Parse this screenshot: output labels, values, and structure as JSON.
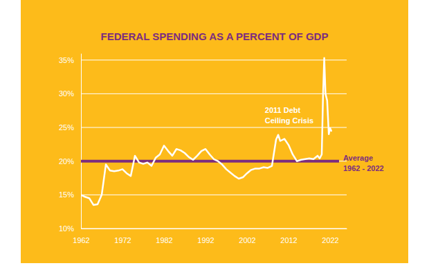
{
  "chart_data": {
    "type": "line",
    "title": "FEDERAL SPENDING AS A PERCENT OF GDP",
    "x": [
      1962,
      1963,
      1964,
      1965,
      1966,
      1967,
      1968,
      1969,
      1970,
      1971,
      1972,
      1973,
      1974,
      1975,
      1976,
      1977,
      1978,
      1979,
      1980,
      1981,
      1982,
      1983,
      1984,
      1985,
      1986,
      1987,
      1988,
      1989,
      1990,
      1991,
      1992,
      1993,
      1994,
      1995,
      1996,
      1997,
      1998,
      1999,
      2000,
      2001,
      2002,
      2003,
      2004,
      2005,
      2006,
      2007,
      2008,
      2009,
      2009.5,
      2010,
      2011,
      2012,
      2013,
      2014,
      2015,
      2016,
      2017,
      2018,
      2019,
      2019.5,
      2020,
      2020.3,
      2020.6,
      2020.9,
      2021.3,
      2021.7,
      2022,
      2022.3
    ],
    "values": [
      15.0,
      14.7,
      14.5,
      13.5,
      13.6,
      15.0,
      19.5,
      18.6,
      18.5,
      18.6,
      18.8,
      18.2,
      17.8,
      20.8,
      19.8,
      19.6,
      19.8,
      19.3,
      20.5,
      21.0,
      22.3,
      21.5,
      20.8,
      21.8,
      21.6,
      21.2,
      20.6,
      20.2,
      20.8,
      21.5,
      21.8,
      21.0,
      20.3,
      20.0,
      19.5,
      18.8,
      18.3,
      17.8,
      17.4,
      17.6,
      18.2,
      18.7,
      18.9,
      18.9,
      19.1,
      19.0,
      19.3,
      23.2,
      23.9,
      23.0,
      23.3,
      22.4,
      21.0,
      20.0,
      20.2,
      20.3,
      20.4,
      20.3,
      20.8,
      20.4,
      21.0,
      29.5,
      35.3,
      30.0,
      29.0,
      24.0,
      24.9,
      24.5
    ],
    "color": "#ffffff",
    "xlim": [
      1962,
      2026
    ],
    "xticks": [
      1962,
      1972,
      1982,
      1992,
      2002,
      2012,
      2022
    ],
    "ylim": [
      10,
      36
    ],
    "yticks": [
      {
        "value": 10,
        "label": "10%"
      },
      {
        "value": 15,
        "label": "15%"
      },
      {
        "value": 20,
        "label": "20%"
      },
      {
        "value": 25,
        "label": "25%"
      },
      {
        "value": 30,
        "label": "30%"
      },
      {
        "value": 35,
        "label": "35%"
      }
    ],
    "grid": true,
    "reference_lines": [
      {
        "value": 20,
        "label": [
          "Average",
          "1962 - 2022"
        ],
        "color": "#7b2d7f"
      }
    ],
    "annotations": [
      {
        "text": [
          "2011 Debt",
          "Ceiling Crisis"
        ],
        "x": 2006.3,
        "y": 27.2
      }
    ]
  }
}
